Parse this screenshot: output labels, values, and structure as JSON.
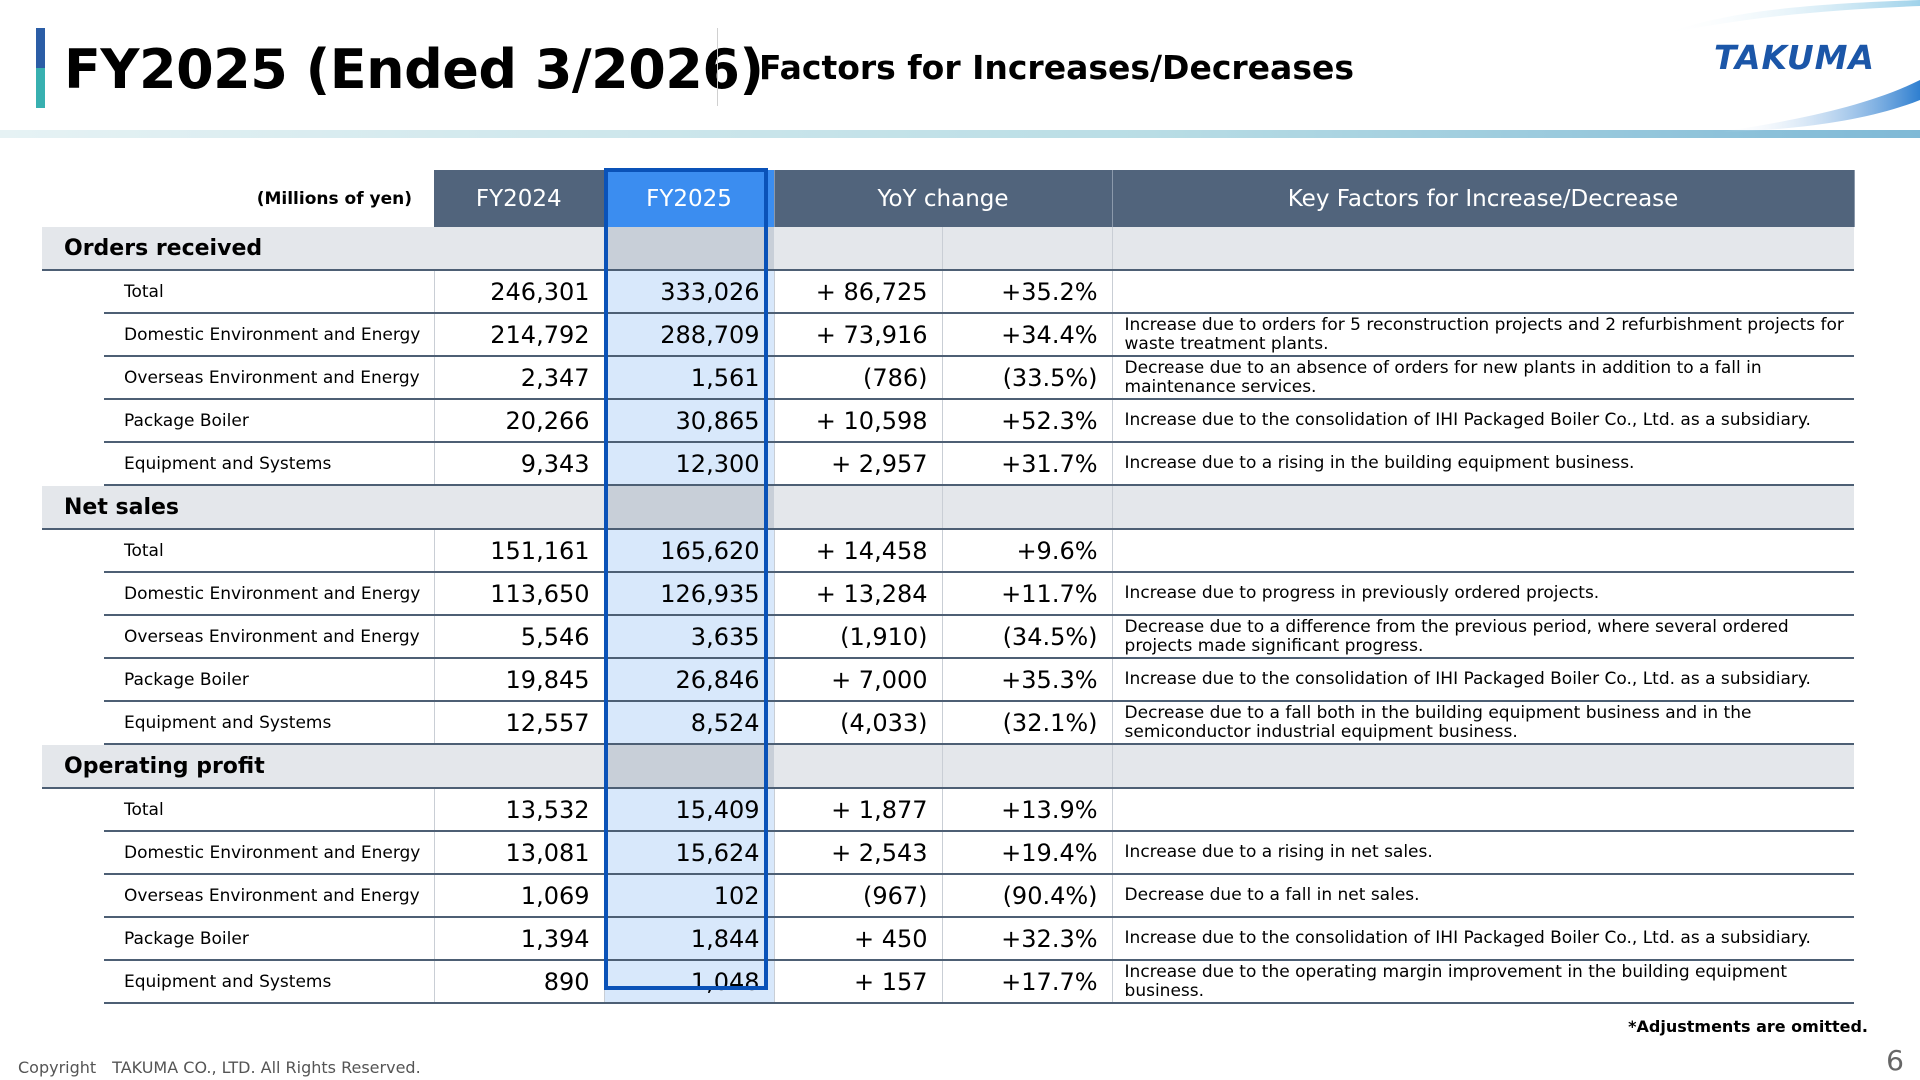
{
  "header": {
    "title": "FY2025 (Ended 3/2026)",
    "subtitle": "Factors for Increases/Decreases",
    "logo_text": "TAKUMA",
    "brand_color": "#1b56a8",
    "accent_colors": [
      "#2b5da6",
      "#38b0b0"
    ]
  },
  "table": {
    "units": "(Millions of yen)",
    "columns": {
      "fy2024": "FY2024",
      "fy2025": "FY2025",
      "yoy": "YoY change",
      "factors": "Key Factors for Increase/Decrease"
    },
    "header_color": "#51647c",
    "highlight_color": "#3b8df0",
    "sections": [
      {
        "title": "Orders received",
        "rows": [
          {
            "name": "Total",
            "fy2024": "246,301",
            "fy2025": "333,026",
            "change": "+ 86,725",
            "pct": "+35.2%",
            "factor": ""
          },
          {
            "name": "Domestic Environment and Energy",
            "fy2024": "214,792",
            "fy2025": "288,709",
            "change": "+ 73,916",
            "pct": "+34.4%",
            "factor": "Increase due to orders for 5 reconstruction projects and 2 refurbishment projects for waste treatment plants."
          },
          {
            "name": "Overseas Environment and Energy",
            "fy2024": "2,347",
            "fy2025": "1,561",
            "change": "(786)",
            "pct": "(33.5%)",
            "factor": "Decrease due to an absence of orders for new plants in addition to a fall in maintenance services."
          },
          {
            "name": "Package Boiler",
            "fy2024": "20,266",
            "fy2025": "30,865",
            "change": "+ 10,598",
            "pct": "+52.3%",
            "factor": "Increase due to the consolidation of IHI Packaged Boiler Co., Ltd. as a subsidiary."
          },
          {
            "name": "Equipment and Systems",
            "fy2024": "9,343",
            "fy2025": "12,300",
            "change": "+ 2,957",
            "pct": "+31.7%",
            "factor": "Increase due to a rising in the building equipment business."
          }
        ]
      },
      {
        "title": "Net sales",
        "rows": [
          {
            "name": "Total",
            "fy2024": "151,161",
            "fy2025": "165,620",
            "change": "+ 14,458",
            "pct": "+9.6%",
            "factor": ""
          },
          {
            "name": "Domestic Environment and Energy",
            "fy2024": "113,650",
            "fy2025": "126,935",
            "change": "+ 13,284",
            "pct": "+11.7%",
            "factor": "Increase due to progress in previously ordered projects."
          },
          {
            "name": "Overseas Environment and Energy",
            "fy2024": "5,546",
            "fy2025": "3,635",
            "change": "(1,910)",
            "pct": "(34.5%)",
            "factor": "Decrease due to a difference from the previous period, where several ordered projects made significant progress."
          },
          {
            "name": "Package Boiler",
            "fy2024": "19,845",
            "fy2025": "26,846",
            "change": "+ 7,000",
            "pct": "+35.3%",
            "factor": "Increase due to the consolidation of IHI Packaged Boiler Co., Ltd. as a subsidiary."
          },
          {
            "name": "Equipment and Systems",
            "fy2024": "12,557",
            "fy2025": "8,524",
            "change": "(4,033)",
            "pct": "(32.1%)",
            "factor": "Decrease due to a fall both in the building equipment business and in the semiconductor industrial equipment business."
          }
        ]
      },
      {
        "title": "Operating profit",
        "rows": [
          {
            "name": "Total",
            "fy2024": "13,532",
            "fy2025": "15,409",
            "change": "+ 1,877",
            "pct": "+13.9%",
            "factor": ""
          },
          {
            "name": "Domestic Environment and Energy",
            "fy2024": "13,081",
            "fy2025": "15,624",
            "change": "+ 2,543",
            "pct": "+19.4%",
            "factor": "Increase due to a rising in net sales."
          },
          {
            "name": "Overseas Environment and Energy",
            "fy2024": "1,069",
            "fy2025": "102",
            "change": "(967)",
            "pct": "(90.4%)",
            "factor": "Decrease due to a fall in net sales."
          },
          {
            "name": "Package Boiler",
            "fy2024": "1,394",
            "fy2025": "1,844",
            "change": "+ 450",
            "pct": "+32.3%",
            "factor": "Increase due to the consolidation of IHI Packaged Boiler Co., Ltd. as a subsidiary."
          },
          {
            "name": "Equipment and Systems",
            "fy2024": "890",
            "fy2025": "1,048",
            "change": "+ 157",
            "pct": "+17.7%",
            "factor": "Increase due to the operating margin improvement in the building equipment business."
          }
        ]
      }
    ]
  },
  "footer": {
    "note": "*Adjustments are omitted.",
    "copyright": "Copyright　TAKUMA CO., LTD.  All Rights Reserved.",
    "page_number": "6"
  }
}
